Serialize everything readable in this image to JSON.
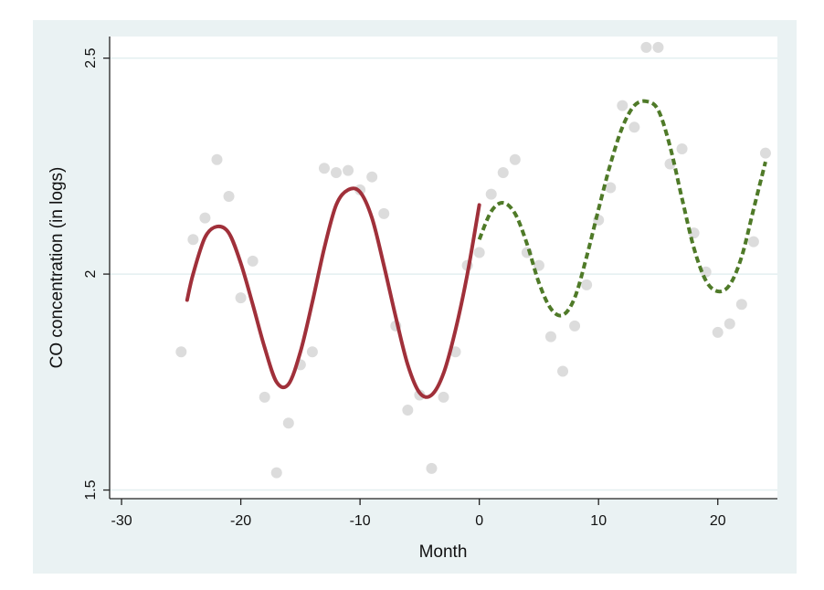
{
  "chart_data": {
    "type": "scatter",
    "title": "",
    "xlabel": "Month",
    "ylabel": "CO concentration (in logs)",
    "xlim": [
      -31,
      25
    ],
    "ylim": [
      1.48,
      2.55
    ],
    "x_ticks": [
      -30,
      -20,
      -10,
      0,
      10,
      20
    ],
    "x_tick_labels": [
      "-30",
      "-20",
      "-10",
      "0",
      "10",
      "20"
    ],
    "y_ticks": [
      1.5,
      2,
      2.5
    ],
    "y_tick_labels": [
      "1.5",
      "2",
      "2.5"
    ],
    "grid": "horizontal",
    "legend": "none",
    "colors": {
      "outer_background": "#eaf2f3",
      "plot_background": "#ffffff",
      "gridline": "#e3eff0",
      "points": "#dcdcdc",
      "series_before": "#a0303a",
      "series_after": "#4f7a28"
    },
    "points": [
      {
        "x": -25,
        "y": 1.82
      },
      {
        "x": -24,
        "y": 2.08
      },
      {
        "x": -23,
        "y": 2.13
      },
      {
        "x": -22,
        "y": 2.265
      },
      {
        "x": -21,
        "y": 2.18
      },
      {
        "x": -20,
        "y": 1.945
      },
      {
        "x": -19,
        "y": 2.03
      },
      {
        "x": -18,
        "y": 1.715
      },
      {
        "x": -17,
        "y": 1.54
      },
      {
        "x": -16,
        "y": 1.655
      },
      {
        "x": -15,
        "y": 1.79
      },
      {
        "x": -14,
        "y": 1.82
      },
      {
        "x": -13,
        "y": 2.245
      },
      {
        "x": -12,
        "y": 2.235
      },
      {
        "x": -11,
        "y": 2.24
      },
      {
        "x": -10,
        "y": 2.195
      },
      {
        "x": -9,
        "y": 2.225
      },
      {
        "x": -8,
        "y": 2.14
      },
      {
        "x": -7,
        "y": 1.88
      },
      {
        "x": -6,
        "y": 1.685
      },
      {
        "x": -5,
        "y": 1.72
      },
      {
        "x": -4,
        "y": 1.55
      },
      {
        "x": -3,
        "y": 1.715
      },
      {
        "x": -2,
        "y": 1.82
      },
      {
        "x": -1,
        "y": 2.02
      },
      {
        "x": 0,
        "y": 2.05
      },
      {
        "x": 1,
        "y": 2.185
      },
      {
        "x": 2,
        "y": 2.235
      },
      {
        "x": 3,
        "y": 2.265
      },
      {
        "x": 4,
        "y": 2.05
      },
      {
        "x": 5,
        "y": 2.02
      },
      {
        "x": 6,
        "y": 1.855
      },
      {
        "x": 7,
        "y": 1.775
      },
      {
        "x": 8,
        "y": 1.88
      },
      {
        "x": 9,
        "y": 1.975
      },
      {
        "x": 10,
        "y": 2.125
      },
      {
        "x": 11,
        "y": 2.2
      },
      {
        "x": 12,
        "y": 2.39
      },
      {
        "x": 13,
        "y": 2.34
      },
      {
        "x": 14,
        "y": 2.525
      },
      {
        "x": 15,
        "y": 2.525
      },
      {
        "x": 16,
        "y": 2.255
      },
      {
        "x": 17,
        "y": 2.29
      },
      {
        "x": 18,
        "y": 2.095
      },
      {
        "x": 19,
        "y": 2.005
      },
      {
        "x": 20,
        "y": 1.865
      },
      {
        "x": 21,
        "y": 1.885
      },
      {
        "x": 22,
        "y": 1.93
      },
      {
        "x": 23,
        "y": 2.075
      },
      {
        "x": 24,
        "y": 2.28
      }
    ],
    "series": [
      {
        "style": "solid",
        "color": "#a0303a",
        "x": [
          -24.5,
          -24,
          -23,
          -22,
          -21,
          -20,
          -19,
          -18,
          -17,
          -16,
          -15,
          -14,
          -13,
          -12,
          -11,
          -10,
          -9,
          -8,
          -7,
          -6,
          -5,
          -4,
          -3,
          -2,
          -1,
          0
        ],
        "y": [
          1.94,
          2.0,
          2.085,
          2.11,
          2.095,
          2.025,
          1.93,
          1.83,
          1.75,
          1.745,
          1.82,
          1.935,
          2.06,
          2.16,
          2.195,
          2.19,
          2.13,
          2.02,
          1.9,
          1.79,
          1.725,
          1.72,
          1.77,
          1.87,
          2.0,
          2.16
        ]
      },
      {
        "style": "dashed",
        "color": "#4f7a28",
        "x": [
          0,
          1,
          2,
          3,
          4,
          5,
          6,
          7,
          8,
          9,
          10,
          11,
          12,
          13,
          14,
          15,
          16,
          17,
          18,
          19,
          20,
          21,
          22,
          23,
          24
        ],
        "y": [
          2.08,
          2.145,
          2.165,
          2.14,
          2.07,
          1.98,
          1.92,
          1.905,
          1.945,
          2.04,
          2.15,
          2.255,
          2.34,
          2.39,
          2.4,
          2.38,
          2.295,
          2.175,
          2.06,
          1.985,
          1.96,
          1.975,
          2.04,
          2.15,
          2.26
        ]
      }
    ]
  }
}
